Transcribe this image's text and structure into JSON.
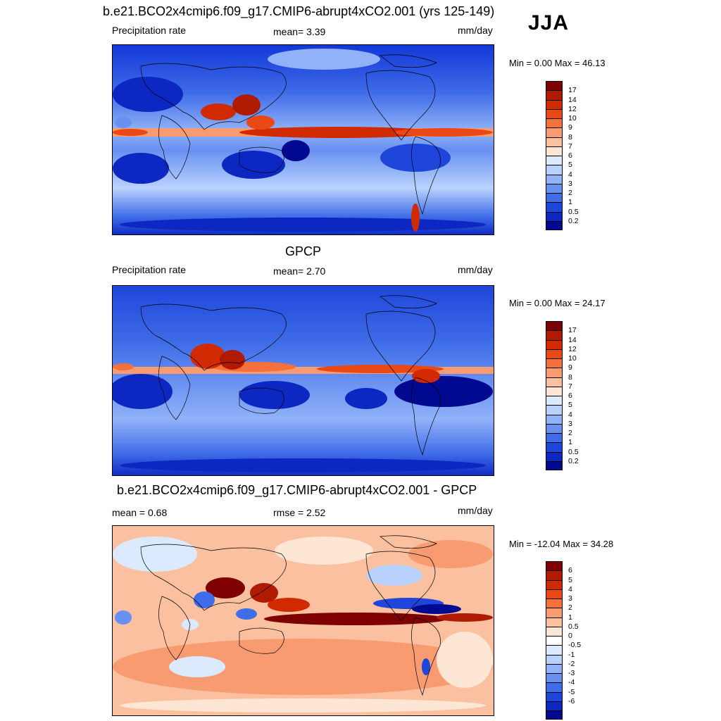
{
  "season": "JJA",
  "colors": {
    "ocean_deep": "#0a2fd0",
    "itcz": "#c81e0a",
    "diff_bg": "#f7b59a"
  },
  "panels": [
    {
      "title": "b.e21.BCO2x4cmip6.f09_g17.CMIP6-abrupt4xCO2.001 (yrs 125-149)",
      "left_label": "Precipitation rate",
      "center_label": "mean=   3.39",
      "units": "mm/day",
      "minmax": "Min =   0.00 Max =  46.13",
      "colorbar": {
        "colors": [
          "#7f0000",
          "#b01a00",
          "#d12a00",
          "#ea4814",
          "#f5703a",
          "#f99b70",
          "#fbc0a0",
          "#fde6d4",
          "#dceaff",
          "#b9d2fd",
          "#91b2f8",
          "#6890f1",
          "#3f6ce8",
          "#1e46db",
          "#0d27c2",
          "#00098f"
        ],
        "ticks": [
          "17",
          "14",
          "12",
          "10",
          "9",
          "8",
          "7",
          "6",
          "5",
          "4",
          "3",
          "2",
          "1",
          "0.5",
          "0.2"
        ]
      }
    },
    {
      "title": "GPCP",
      "left_label": "Precipitation rate",
      "center_label": "mean=   2.70",
      "units": "mm/day",
      "minmax": "Min =   0.00 Max =  24.17",
      "colorbar": {
        "colors": [
          "#7f0000",
          "#b01a00",
          "#d12a00",
          "#ea4814",
          "#f5703a",
          "#f99b70",
          "#fbc0a0",
          "#fde6d4",
          "#dceaff",
          "#b9d2fd",
          "#91b2f8",
          "#6890f1",
          "#3f6ce8",
          "#1e46db",
          "#0d27c2",
          "#00098f"
        ],
        "ticks": [
          "17",
          "14",
          "12",
          "10",
          "9",
          "8",
          "7",
          "6",
          "5",
          "4",
          "3",
          "2",
          "1",
          "0.5",
          "0.2"
        ]
      }
    },
    {
      "title": "b.e21.BCO2x4cmip6.f09_g17.CMIP6-abrupt4xCO2.001 - GPCP",
      "left_label": "mean =   0.68",
      "center_label": "rmse =   2.52",
      "units": "mm/day",
      "minmax": "Min = -12.04 Max =  34.28",
      "colorbar": {
        "colors": [
          "#7f0000",
          "#b01a00",
          "#d12a00",
          "#ea4814",
          "#f5703a",
          "#f99b70",
          "#fbc0a0",
          "#fde6d4",
          "#ffffff",
          "#dceaff",
          "#b9d2fd",
          "#91b2f8",
          "#6890f1",
          "#3f6ce8",
          "#1e46db",
          "#0d27c2",
          "#00098f"
        ],
        "ticks": [
          "6",
          "5",
          "4",
          "3",
          "2",
          "1",
          "0.5",
          "0",
          "-0.5",
          "-1",
          "-2",
          "-3",
          "-4",
          "-5",
          "-6"
        ]
      }
    }
  ]
}
